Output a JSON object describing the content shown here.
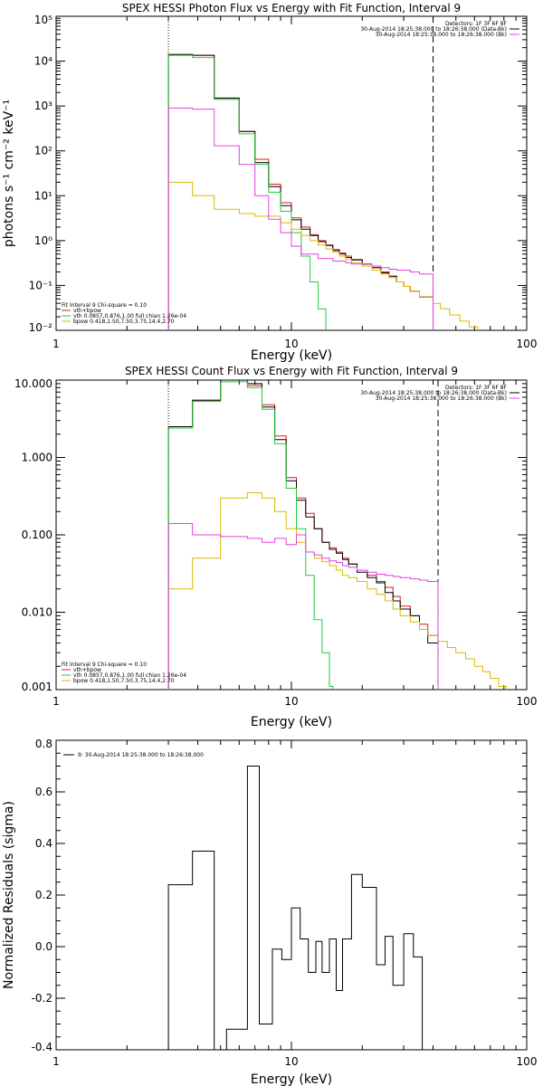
{
  "colors": {
    "background": "#ffffff",
    "axes": "#000000",
    "total_fit": "#d81b1b",
    "vth": "#22c93c",
    "vth_alt": "#000000",
    "bpow": "#d9b800",
    "background_model": "#e040e0",
    "residuals": "#000000"
  },
  "chart_data": [
    {
      "type": "line",
      "step": true,
      "title": "SPEX HESSI Photon Flux vs Energy with Fit Function, Interval 9",
      "xlabel": "Energy (keV)",
      "ylabel": "photons s⁻¹ cm⁻² keV⁻¹",
      "xscale": "log",
      "yscale": "log",
      "xlim": [
        1,
        100
      ],
      "ylim": [
        0.01,
        100000
      ],
      "x_ticks": [
        1,
        10,
        100
      ],
      "x_tick_labels": [
        "1",
        "10",
        "100"
      ],
      "y_ticks": [
        0.01,
        0.1,
        1,
        10,
        100,
        1000,
        10000,
        100000
      ],
      "y_tick_labels": [
        "10⁻²",
        "10⁻¹",
        "10⁰",
        "10¹",
        "10²",
        "10³",
        "10⁴",
        "10⁵"
      ],
      "vlines": [
        {
          "x": 3.0,
          "style": "dotted"
        },
        {
          "x": 40.0,
          "style": "dashed"
        }
      ],
      "legend_top_right": [
        {
          "text": "Detectors: 1F 3F 6F 8F"
        },
        {
          "text": "30-Aug-2014 18:25:38.000 to 18:26:38.000 (Data-Bk)",
          "color": "#000000"
        },
        {
          "text": "30-Aug-2014 18:25:38.000 to 18:26:38.000 (Bk)",
          "color": "#e040e0"
        }
      ],
      "legend_bottom_left": [
        {
          "text": "Fit Interval 9   Chi-square = 0.10"
        },
        {
          "text": "vth+bpow",
          "color": "#d81b1b"
        },
        {
          "text": "vth 0.0857,0.876,1.00  full chian 1.26e-04",
          "color": "#22c93c"
        },
        {
          "text": "bpow 0.418,1.50,7.50,3.75,14.4,2.70",
          "color": "#d9b800"
        }
      ],
      "series": [
        {
          "name": "vth+bpow",
          "color": "#d81b1b",
          "edges": [
            3.0,
            3.8,
            4.7,
            6.0,
            7.0,
            8.0,
            9.0,
            10.0,
            11.0,
            12.0,
            13.0,
            14.0,
            15.0,
            16.0,
            17.0,
            18.0,
            20.0,
            22.0,
            24.0,
            26.0,
            28.0,
            30.0,
            32.0,
            35.0,
            40.0
          ],
          "values": [
            14000,
            13500,
            1500,
            270,
            65,
            18,
            7.0,
            3.2,
            2.0,
            1.35,
            1.0,
            0.8,
            0.63,
            0.53,
            0.45,
            0.38,
            0.3,
            0.25,
            0.2,
            0.16,
            0.12,
            0.095,
            0.075,
            0.055
          ]
        },
        {
          "name": "Data-Bk",
          "color": "#000000",
          "edges": [
            3.0,
            3.8,
            4.7,
            6.0,
            7.0,
            8.0,
            9.0,
            10.0,
            11.0,
            12.0,
            13.0,
            14.0,
            15.0,
            16.0,
            17.0,
            18.0,
            20.0,
            22.0,
            24.0,
            26.0,
            28.0,
            30.0,
            32.0,
            35.0,
            40.0
          ],
          "values": [
            14000,
            13500,
            1500,
            270,
            55,
            16,
            6.0,
            2.9,
            1.8,
            1.3,
            0.95,
            0.78,
            0.6,
            0.5,
            0.42,
            0.37,
            0.3,
            0.25,
            0.19,
            0.16,
            0.12,
            0.095,
            0.075,
            0.055
          ]
        },
        {
          "name": "vth 0.0857,0.876,1.00",
          "color": "#22c93c",
          "edges": [
            3.0,
            3.8,
            4.7,
            6.0,
            7.0,
            8.0,
            9.0,
            10.0,
            11.0,
            12.0,
            13.0,
            14.0
          ],
          "values": [
            13500,
            12000,
            1400,
            240,
            50,
            12,
            4.5,
            1.5,
            0.45,
            0.12,
            0.03
          ]
        },
        {
          "name": "bpow 0.418,1.50,7.50,3.75,14.4,2.70",
          "color": "#d9b800",
          "edges": [
            3.0,
            3.8,
            4.7,
            6.0,
            7.0,
            8.0,
            9.0,
            10.0,
            11.0,
            12.0,
            13.0,
            14.0,
            15.0,
            16.0,
            17.0,
            18.0,
            20.0,
            22.0,
            24.0,
            26.0,
            28.0,
            30.0,
            32.0,
            35.0,
            40.0,
            43.0,
            47.0,
            52.0,
            57.0,
            62.0,
            67.0
          ],
          "values": [
            20,
            10,
            5,
            4,
            3.5,
            3.5,
            2.5,
            1.8,
            1.3,
            1.0,
            0.8,
            0.65,
            0.55,
            0.45,
            0.38,
            0.32,
            0.27,
            0.22,
            0.18,
            0.15,
            0.12,
            0.095,
            0.075,
            0.055,
            0.04,
            0.03,
            0.022,
            0.016,
            0.012,
            0.009
          ]
        },
        {
          "name": "Bk",
          "color": "#e040e0",
          "edges": [
            3.0,
            3.8,
            4.7,
            6.0,
            7.0,
            8.0,
            9.0,
            10.0,
            11.0,
            12.0,
            13.0,
            14.0,
            15.0,
            16.0,
            17.0,
            18.0,
            20.0,
            22.0,
            24.0,
            26.0,
            28.0,
            30.0,
            32.0,
            35.0,
            40.0
          ],
          "values": [
            900,
            850,
            130,
            50,
            10,
            3.0,
            1.5,
            0.75,
            0.5,
            0.5,
            0.4,
            0.4,
            0.35,
            0.35,
            0.32,
            0.3,
            0.3,
            0.27,
            0.25,
            0.23,
            0.22,
            0.22,
            0.2,
            0.18
          ],
          "drop_to": 0.01
        }
      ]
    },
    {
      "type": "line",
      "step": true,
      "title": "SPEX HESSI Count Flux vs Energy with Fit Function, Interval 9",
      "xlabel": "Energy (keV)",
      "ylabel": "",
      "xscale": "log",
      "yscale": "log",
      "xlim": [
        1,
        100
      ],
      "ylim": [
        0.001,
        10
      ],
      "x_ticks": [
        1,
        10,
        100
      ],
      "x_tick_labels": [
        "1",
        "10",
        "100"
      ],
      "y_ticks": [
        0.001,
        0.01,
        0.1,
        1,
        10
      ],
      "y_tick_labels": [
        "0.001",
        "0.010",
        "0.100",
        "1.000",
        "10.000"
      ],
      "vlines": [
        {
          "x": 3.0,
          "style": "dotted"
        },
        {
          "x": 42.0,
          "style": "dashed"
        }
      ],
      "legend_top_right": [
        {
          "text": "Detectors: 1F 3F 6F 8F"
        },
        {
          "text": "30-Aug-2014 18:25:38.000 to 18:26:38.000 (Data-Bk)",
          "color": "#000000"
        },
        {
          "text": "30-Aug-2014 18:25:38.000 to 18:26:38.000 (Bk)",
          "color": "#e040e0"
        }
      ],
      "legend_bottom_left": [
        {
          "text": "Fit Interval 9   Chi-square = 0.10"
        },
        {
          "text": "vth+bpow",
          "color": "#d81b1b"
        },
        {
          "text": "vth 0.0857,0.876,1.00  full chian 1.26e-04",
          "color": "#22c93c"
        },
        {
          "text": "bpow 0.418,1.50,7.50,3.75,14.4,2.70",
          "color": "#d9b800"
        }
      ],
      "series": [
        {
          "name": "vth+bpow",
          "color": "#d81b1b",
          "edges": [
            3.0,
            3.8,
            5.0,
            6.5,
            7.5,
            8.5,
            9.5,
            10.5,
            11.5,
            12.5,
            13.5,
            14.5,
            15.5,
            16.5,
            17.5,
            19.0,
            21.0,
            23.0,
            25.0,
            27.0,
            29.0,
            32.0,
            35.0,
            38.0,
            42.0
          ],
          "values": [
            2.5,
            5.5,
            10.0,
            8.5,
            4.8,
            1.9,
            0.55,
            0.3,
            0.19,
            0.12,
            0.08,
            0.068,
            0.06,
            0.05,
            0.042,
            0.035,
            0.03,
            0.025,
            0.021,
            0.016,
            0.012,
            0.009,
            0.007,
            0.005
          ]
        },
        {
          "name": "Data-Bk",
          "color": "#000000",
          "edges": [
            3.0,
            3.8,
            5.0,
            6.5,
            7.5,
            8.5,
            9.5,
            10.5,
            11.5,
            12.5,
            13.5,
            14.5,
            15.5,
            16.5,
            17.5,
            19.0,
            21.0,
            23.0,
            25.0,
            27.0,
            29.0,
            32.0,
            35.0,
            38.0,
            42.0
          ],
          "values": [
            2.5,
            5.5,
            10.0,
            9.0,
            4.5,
            1.7,
            0.5,
            0.28,
            0.17,
            0.12,
            0.08,
            0.065,
            0.058,
            0.048,
            0.042,
            0.033,
            0.028,
            0.024,
            0.018,
            0.014,
            0.011,
            0.009,
            0.006,
            0.004
          ]
        },
        {
          "name": "vth 0.0857,0.876,1.00",
          "color": "#22c93c",
          "edges": [
            3.0,
            3.8,
            5.0,
            6.5,
            7.5,
            8.5,
            9.5,
            10.5,
            11.5,
            12.5,
            13.5,
            14.5,
            15.0
          ],
          "values": [
            2.4,
            5.3,
            9.5,
            8.0,
            4.2,
            1.5,
            0.4,
            0.12,
            0.03,
            0.008,
            0.003,
            0.0011
          ]
        },
        {
          "name": "bpow 0.418,1.50,7.50,3.75,14.4,2.70",
          "color": "#d9b800",
          "edges": [
            3.0,
            3.8,
            5.0,
            6.5,
            7.5,
            8.5,
            9.5,
            10.5,
            11.5,
            12.5,
            13.5,
            14.5,
            15.5,
            16.5,
            17.5,
            19.0,
            21.0,
            23.0,
            25.0,
            27.0,
            29.0,
            32.0,
            35.0,
            38.0,
            42.0,
            46.0,
            50.0,
            55.0,
            60.0,
            65.0,
            70.0,
            76.0,
            82.0
          ],
          "values": [
            0.02,
            0.05,
            0.3,
            0.35,
            0.3,
            0.2,
            0.12,
            0.08,
            0.06,
            0.05,
            0.045,
            0.04,
            0.035,
            0.03,
            0.028,
            0.025,
            0.02,
            0.017,
            0.014,
            0.011,
            0.009,
            0.0075,
            0.006,
            0.005,
            0.0042,
            0.0035,
            0.003,
            0.0025,
            0.002,
            0.0017,
            0.0014,
            0.0011
          ]
        },
        {
          "name": "Bk",
          "color": "#e040e0",
          "edges": [
            3.0,
            3.8,
            5.0,
            6.5,
            7.5,
            8.5,
            9.5,
            10.5,
            11.5,
            12.5,
            13.5,
            14.5,
            15.5,
            16.5,
            17.5,
            19.0,
            21.0,
            23.0,
            25.0,
            27.0,
            29.0,
            32.0,
            35.0,
            38.0,
            42.0
          ],
          "values": [
            0.14,
            0.1,
            0.095,
            0.09,
            0.08,
            0.09,
            0.075,
            0.1,
            0.06,
            0.055,
            0.05,
            0.046,
            0.044,
            0.04,
            0.038,
            0.035,
            0.033,
            0.031,
            0.03,
            0.029,
            0.028,
            0.027,
            0.026,
            0.025
          ],
          "drop_to": 0.001
        }
      ]
    },
    {
      "type": "line",
      "step": true,
      "title": "",
      "xlabel": "Energy (keV)",
      "ylabel": "Normalized Residuals (sigma)",
      "xscale": "log",
      "yscale": "linear",
      "xlim": [
        1,
        100
      ],
      "ylim": [
        -0.4,
        0.8
      ],
      "x_ticks": [
        1,
        10,
        100
      ],
      "x_tick_labels": [
        "1",
        "10",
        "100"
      ],
      "y_ticks": [
        -0.4,
        -0.2,
        0.0,
        0.2,
        0.4,
        0.6,
        0.8
      ],
      "y_tick_labels": [
        "-0.4",
        "-0.2",
        "0.0",
        "0.2",
        "0.4",
        "0.6",
        "0.8"
      ],
      "legend_top_left": [
        {
          "text": "9: 30-Aug-2014 18:25:38.000 to 18:26:38.000",
          "color": "#000000"
        }
      ],
      "series": [
        {
          "name": "9: 30-Aug-2014 18:25:38.000 to 18:26:38.000",
          "color": "#000000",
          "edges": [
            3.0,
            3.8,
            4.7,
            5.3,
            6.5,
            7.3,
            8.3,
            9.1,
            10.0,
            10.9,
            11.8,
            12.7,
            13.5,
            14.5,
            15.5,
            16.5,
            18.0,
            20.0,
            23.0,
            25.0,
            27.0,
            30.0,
            33.0,
            36.0,
            40.0
          ],
          "values": [
            0.24,
            0.37,
            -0.42,
            -0.32,
            0.7,
            -0.3,
            -0.01,
            -0.05,
            0.15,
            0.03,
            -0.1,
            0.02,
            -0.1,
            0.03,
            -0.17,
            0.03,
            0.28,
            0.23,
            -0.07,
            0.04,
            -0.15,
            0.05,
            -0.04,
            -0.45
          ],
          "drop_to": -0.45
        }
      ]
    }
  ]
}
